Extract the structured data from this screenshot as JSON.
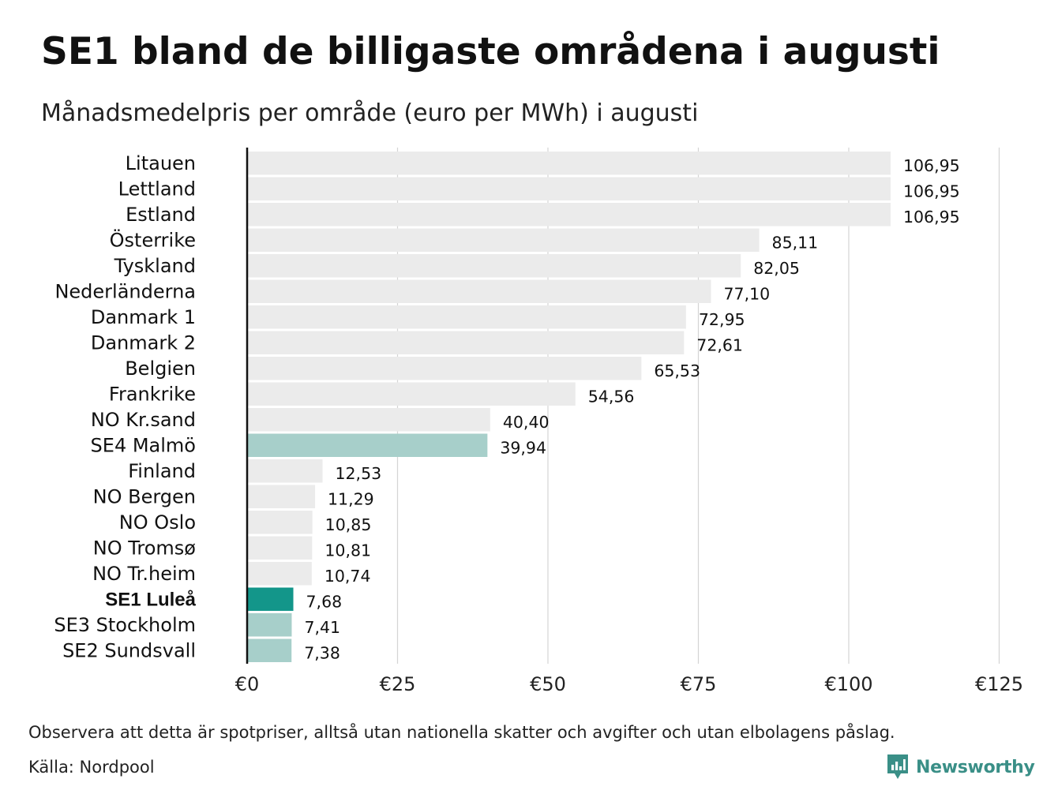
{
  "title": "SE1 bland de billigaste områdena i augusti",
  "subtitle": "Månadsmedelpris per område (euro per MWh) i augusti",
  "note": "Observera att detta är spotpriser, alltså utan nationella skatter och avgifter och utan elbolagens påslag.",
  "source": "Källa: Nordpool",
  "brand": {
    "name": "Newsworthy",
    "icon": "bar-chart-speech-bubble-icon",
    "color": "#3a8f87"
  },
  "colors": {
    "default": "#ebebeb",
    "swedish": "#a7cfca",
    "highlight": "#13968a",
    "grid": "#d4d4d4",
    "axis": "#111111"
  },
  "chart_data": {
    "type": "bar",
    "orientation": "horizontal",
    "xlim": [
      0,
      125
    ],
    "x_ticks": [
      0,
      25,
      50,
      75,
      100,
      125
    ],
    "x_tick_labels": [
      "€0",
      "€25",
      "€50",
      "€75",
      "€100",
      "€125"
    ],
    "grid": true,
    "categories": [
      "Litauen",
      "Lettland",
      "Estland",
      "Österrike",
      "Tyskland",
      "Nederländerna",
      "Danmark  1",
      "Danmark  2",
      "Belgien",
      "Frankrike",
      "NO Kr.sand",
      "SE4  Malmö",
      "Finland",
      "NO Bergen",
      "NO Oslo",
      "NO Tromsø",
      "NO Tr.heim",
      "SE1 Luleå",
      "SE3  Stockholm",
      "SE2  Sundsvall"
    ],
    "values": [
      106.95,
      106.95,
      106.95,
      85.11,
      82.05,
      77.1,
      72.95,
      72.61,
      65.53,
      54.56,
      40.4,
      39.94,
      12.53,
      11.29,
      10.85,
      10.81,
      10.74,
      7.68,
      7.41,
      7.38
    ],
    "value_labels": [
      "106,95",
      "106,95",
      "106,95",
      "85,11",
      "82,05",
      "77,10",
      "72,95",
      "72,61",
      "65,53",
      "54,56",
      "40,40",
      "39,94",
      "12,53",
      "11,29",
      "10,85",
      "10,81",
      "10,74",
      "7,68",
      "7,41",
      "7,38"
    ],
    "bar_groups": [
      "default",
      "default",
      "default",
      "default",
      "default",
      "default",
      "default",
      "default",
      "default",
      "default",
      "default",
      "swedish",
      "default",
      "default",
      "default",
      "default",
      "default",
      "highlight",
      "swedish",
      "swedish"
    ],
    "bold_categories": [
      "SE1 Luleå"
    ]
  }
}
